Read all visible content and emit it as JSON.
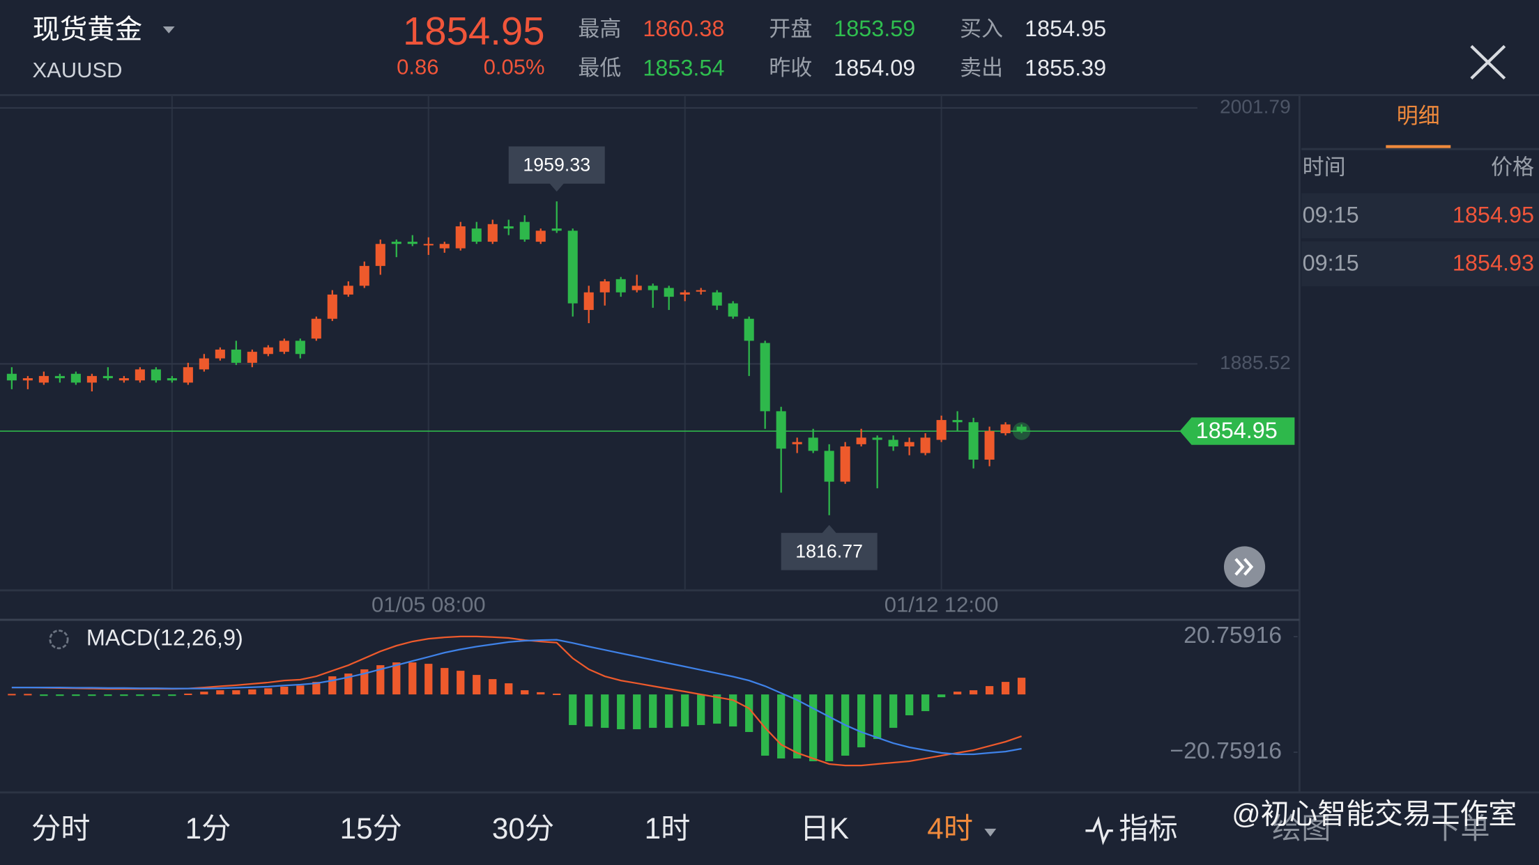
{
  "header": {
    "name": "现货黄金",
    "symbol": "XAUUSD",
    "price": "1854.95",
    "change": "0.86",
    "change_pct": "0.05%",
    "stats": [
      {
        "label": "最高",
        "value": "1860.38",
        "color": "#f0553a"
      },
      {
        "label": "最低",
        "value": "1853.54",
        "color": "#2fbf4f"
      },
      {
        "label": "开盘",
        "value": "1853.59",
        "color": "#2fbf4f"
      },
      {
        "label": "昨收",
        "value": "1854.09",
        "color": "#e8eaee"
      },
      {
        "label": "买入",
        "value": "1854.95",
        "color": "#e8eaee"
      },
      {
        "label": "卖出",
        "value": "1855.39",
        "color": "#e8eaee"
      }
    ]
  },
  "chart_data": [
    {
      "type": "candlestick",
      "categories": [
        null,
        null,
        null,
        null,
        null,
        null,
        null,
        null,
        null,
        null,
        null,
        null,
        null,
        null,
        null,
        null,
        null,
        null,
        null,
        null,
        null,
        null,
        null,
        null,
        null,
        null,
        "01/05 08:00",
        null,
        null,
        null,
        null,
        null,
        null,
        null,
        null,
        null,
        null,
        null,
        null,
        null,
        null,
        null,
        null,
        null,
        null,
        null,
        null,
        null,
        null,
        null,
        null,
        null,
        null,
        null,
        null,
        null,
        null,
        null,
        "01/12 12:00",
        null,
        null,
        null,
        null,
        null
      ],
      "open": [
        1881,
        1878,
        1877,
        1880,
        1881,
        1877,
        1880,
        1878,
        1878,
        1883,
        1879,
        1877,
        1883,
        1888,
        1892,
        1886,
        1890,
        1891,
        1896,
        1897,
        1906,
        1917,
        1921,
        1930,
        1941,
        1941,
        1940,
        1938,
        1938,
        1947,
        1941,
        1948,
        1950,
        1941,
        1947,
        1946,
        1910,
        1918,
        1924,
        1919,
        1921,
        1920,
        1917,
        1919,
        1918,
        1913,
        1906,
        1895,
        1864,
        1849,
        1852,
        1846,
        1832,
        1849,
        1852,
        1851,
        1848,
        1845,
        1851,
        1860,
        1859,
        1842,
        1854,
        1857
      ],
      "high": [
        1884,
        1880,
        1882,
        1881,
        1882,
        1881,
        1884,
        1880,
        1884,
        1884,
        1880,
        1886,
        1890,
        1893,
        1896,
        1892,
        1894,
        1897,
        1897,
        1907,
        1919,
        1923,
        1932,
        1942,
        1942,
        1944,
        1943,
        1941,
        1950,
        1950,
        1951,
        1951,
        1953,
        1947,
        1959.33,
        1947,
        1921,
        1924,
        1925,
        1926,
        1922,
        1921,
        1919,
        1920,
        1919,
        1914,
        1907,
        1896,
        1866,
        1852,
        1856,
        1849,
        1850,
        1856,
        1853,
        1853,
        1852,
        1854,
        1862,
        1864,
        1861,
        1857,
        1859,
        1858
      ],
      "low": [
        1874,
        1874,
        1876,
        1877,
        1876,
        1873,
        1878,
        1877,
        1877,
        1877,
        1877,
        1876,
        1882,
        1887,
        1885,
        1884,
        1889,
        1890,
        1888,
        1896,
        1905,
        1916,
        1920,
        1926,
        1934,
        1939,
        1935,
        1936,
        1937,
        1940,
        1940,
        1944,
        1941,
        1940,
        1945,
        1907,
        1904,
        1912,
        1916,
        1918,
        1911,
        1910,
        1914,
        1917,
        1910,
        1906,
        1880,
        1856,
        1827,
        1845,
        1845,
        1816.77,
        1831,
        1848,
        1829,
        1846,
        1844,
        1844,
        1850,
        1855,
        1838,
        1839,
        1853,
        1854
      ],
      "close": [
        1878,
        1879,
        1880,
        1879,
        1877,
        1880,
        1879,
        1879,
        1883,
        1878,
        1878,
        1884,
        1888,
        1892,
        1886,
        1891,
        1893,
        1896,
        1890,
        1906,
        1917,
        1921,
        1930,
        1940,
        1940,
        1940,
        1940,
        1940,
        1948,
        1941,
        1949,
        1947,
        1942,
        1946,
        1946,
        1913,
        1918,
        1923,
        1918,
        1921,
        1919,
        1916,
        1918,
        1919,
        1912,
        1907,
        1896,
        1864,
        1847,
        1850,
        1846,
        1832,
        1848,
        1852,
        1851,
        1848,
        1850,
        1852,
        1860,
        1859,
        1842,
        1855,
        1858,
        1854.95
      ],
      "up_color": "#ee5a2c",
      "down_color": "#2eb84b",
      "ylim": [
        1782.6,
        2007.6
      ],
      "yticks": [
        1885.52,
        2001.79
      ],
      "grid": true
    },
    {
      "type": "macd",
      "title": "MACD(12,26,9)",
      "series": [
        {
          "color": "#ee5a2c",
          "values": [
            2.5,
            2.5,
            2.4,
            2.3,
            2.2,
            2.1,
            2.0,
            2.0,
            2.0,
            2.0,
            2.0,
            2.1,
            2.5,
            2.9,
            3.3,
            3.8,
            4.3,
            5.0,
            5.3,
            6.5,
            8.5,
            10.5,
            13,
            15.5,
            17.5,
            19,
            20,
            20.5,
            20.8,
            20.8,
            20.6,
            20.3,
            19.5,
            19,
            18.6,
            13,
            9,
            6.5,
            5,
            4,
            3,
            2,
            1,
            0,
            -1,
            -2,
            -5,
            -12,
            -18,
            -21,
            -23,
            -25,
            -25.5,
            -25.5,
            -25,
            -24.5,
            -24,
            -23,
            -22,
            -21,
            -20,
            -18.5,
            -17,
            -15
          ]
        },
        {
          "color": "#3f82e8",
          "values": [
            2.5,
            2.5,
            2.5,
            2.5,
            2.4,
            2.4,
            2.3,
            2.3,
            2.2,
            2.2,
            2.1,
            2.1,
            2.1,
            2.2,
            2.4,
            2.6,
            2.8,
            3.2,
            3.5,
            4.0,
            5.0,
            6.2,
            7.5,
            9,
            10.5,
            12,
            13.5,
            15,
            16.2,
            17.2,
            18,
            18.8,
            19.3,
            19.5,
            19.6,
            18.5,
            17.2,
            16,
            14.8,
            13.6,
            12.4,
            11.2,
            10,
            8.8,
            7.6,
            6.4,
            5,
            3,
            0.5,
            -2,
            -5,
            -8,
            -11,
            -13.5,
            -15.5,
            -17.5,
            -19,
            -20,
            -21,
            -21.5,
            -21.5,
            -21,
            -20.5,
            -19.5
          ]
        }
      ],
      "histogram": [
        0.2,
        0.2,
        -0.2,
        -0.3,
        -0.3,
        -0.2,
        -0.2,
        -0.1,
        -0.2,
        -0.3,
        -0.2,
        0.3,
        1.0,
        1.5,
        1.5,
        1.8,
        2.2,
        2.8,
        3.2,
        4.5,
        6.5,
        7.5,
        9.0,
        10.5,
        11.5,
        11.5,
        11.0,
        9.5,
        8.5,
        7.0,
        5.5,
        4.0,
        1.5,
        0.8,
        0.3,
        -11,
        -11.5,
        -12,
        -12.5,
        -12.5,
        -12,
        -12,
        -11.5,
        -11,
        -10.5,
        -11.5,
        -13.5,
        -22,
        -23,
        -23,
        -24,
        -24,
        -22,
        -19,
        -16,
        -12,
        -7.5,
        -6,
        -1,
        1,
        1.5,
        3,
        4.5,
        6
      ],
      "up_color": "#ee5a2c",
      "down_color": "#2eb84b",
      "ylim": [
        -35.2,
        26.8
      ],
      "yticks": [
        20.75916,
        {
          "value": -20.75916,
          "label": "−20.75916"
        }
      ]
    }
  ],
  "detail": {
    "tab": "明细",
    "columns": [
      "时间",
      "价格"
    ],
    "rows": [
      [
        "09:15",
        "1854.95"
      ],
      [
        "09:15",
        "1854.93"
      ]
    ]
  },
  "tabs": [
    "分时",
    "1分",
    "15分",
    "30分",
    "1时",
    "日K",
    "4时"
  ],
  "active_tab": 6,
  "tools": [
    "指标",
    "绘图",
    "下单"
  ],
  "watermark": "@初心智能交易工作室"
}
